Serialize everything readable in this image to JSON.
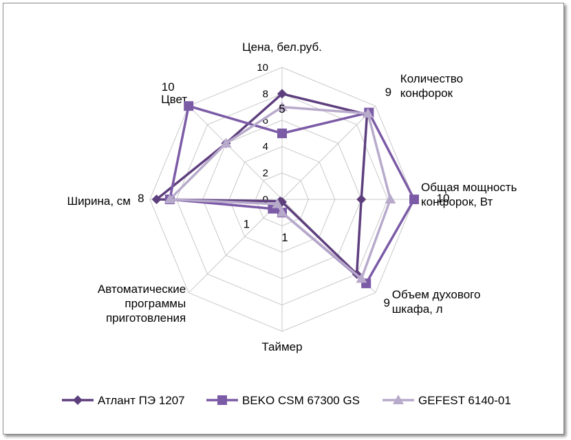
{
  "chart_data": {
    "type": "radar",
    "categories": [
      "Цена, бел.руб.",
      "Количество конфорок",
      "Общая мощность конфорок, Вт",
      "Объем духового шкафа, л",
      "Таймер",
      "Автоматические программы приготовления",
      "Ширина, см",
      "Цвет"
    ],
    "category_lines": [
      [
        "Цена, бел.руб."
      ],
      [
        "Количество",
        "конфорок"
      ],
      [
        "Общая мощность",
        "конфорок, Вт"
      ],
      [
        "Объем духового",
        "шкафа, л"
      ],
      [
        "Таймер"
      ],
      [
        "Автоматические",
        "программы",
        "приготовления"
      ],
      [
        "Ширина, см"
      ],
      [
        "Цвет"
      ]
    ],
    "rlim": [
      0,
      10
    ],
    "ticks": [
      0,
      2,
      4,
      6,
      8,
      10
    ],
    "series": [
      {
        "name": "Атлант ПЭ 1207",
        "color": "#5e3f7e",
        "marker": "diamond",
        "values": [
          8,
          9.1,
          6,
          8,
          0.2,
          0.2,
          9.5,
          6
        ]
      },
      {
        "name": "BEKO CSM 67300 GS",
        "color": "#7b5aa6",
        "marker": "square",
        "values": [
          5,
          9.3,
          10,
          9,
          1,
          1,
          8.5,
          10
        ]
      },
      {
        "name": "GEFEST 6140-01",
        "color": "#b8aacb",
        "marker": "triangle",
        "values": [
          7,
          9.2,
          8.2,
          8.5,
          1,
          0.5,
          8.5,
          6
        ]
      }
    ],
    "data_labels": [
      {
        "text": "5",
        "category": 0,
        "value": 5,
        "dx": 0,
        "dy": -30
      },
      {
        "text": "9",
        "category": 1,
        "value": 9.3,
        "dx": 28,
        "dy": -24
      },
      {
        "text": "10",
        "category": 2,
        "value": 10,
        "dx": 42,
        "dy": 4
      },
      {
        "text": "9",
        "category": 3,
        "value": 9,
        "dx": 30,
        "dy": 34
      },
      {
        "text": "1",
        "category": 4,
        "value": 1,
        "dx": 4,
        "dy": 42
      },
      {
        "text": "1",
        "category": 5,
        "value": 1,
        "dx": -38,
        "dy": 28
      },
      {
        "text": "8",
        "category": 6,
        "value": 8.5,
        "dx": -42,
        "dy": 4
      },
      {
        "text": "10",
        "category": 7,
        "value": 10,
        "dx": -30,
        "dy": -22
      }
    ],
    "legend_position": "bottom",
    "grid": true
  }
}
